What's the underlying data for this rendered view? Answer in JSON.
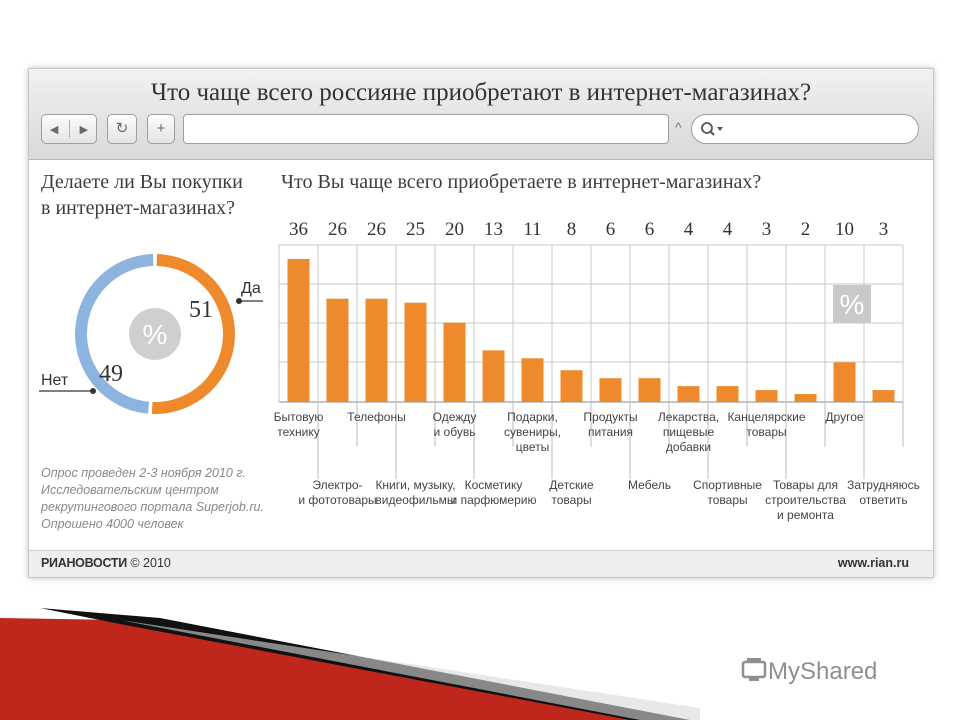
{
  "window": {
    "title": "Что чаще всего россияне приобретают в интернет-магазинах?",
    "url_value": "",
    "search_placeholder": "",
    "buttons": {
      "back": "◀",
      "forward": "▶",
      "reload": "↻",
      "new_tab": "+"
    }
  },
  "left_panel": {
    "question_line1": "Делаете ли Вы покупки",
    "question_line2": "в интернет-магазинах?",
    "center_symbol": "%",
    "note_lines": [
      "Опрос проведен 2-3 ноября 2010 г.",
      "Исследовательским центром",
      "рекрутингового портала Superjob.ru.",
      "Опрошено 4000 человек"
    ]
  },
  "right_panel": {
    "question": "Что Вы чаще всего приобретаете в интернет-магазинах?",
    "percent_badge": "%"
  },
  "footer": {
    "agency": "РИАНОВОСТИ",
    "copyright": "© 2010",
    "site": "www.rian.ru"
  },
  "watermark": {
    "text": "MyShared"
  },
  "colors": {
    "accent": "#ee8a2b",
    "no_color": "#8db4df",
    "center_circle": "#cfcfcf",
    "grid": "#c9c9c9"
  },
  "chart_data": [
    {
      "type": "pie",
      "title": "Делаете ли Вы покупки в интернет-магазинах?",
      "slices": [
        {
          "label": "Да",
          "value": 51,
          "color": "#ee8a2b"
        },
        {
          "label": "Нет",
          "value": 49,
          "color": "#8db4df"
        }
      ]
    },
    {
      "type": "bar",
      "title": "Что Вы чаще всего приобретаете в интернет-магазинах?",
      "grid": true,
      "values": [
        36,
        26,
        26,
        25,
        20,
        13,
        11,
        8,
        6,
        6,
        4,
        4,
        3,
        2,
        10,
        3
      ],
      "categories": [
        [
          "Бытовую",
          "технику"
        ],
        [
          "Электро-",
          "и фототовары"
        ],
        [
          "Телефоны"
        ],
        [
          "Книги, музыку,",
          "видеофильмы"
        ],
        [
          "Одежду",
          "и обувь"
        ],
        [
          "Косметику",
          "и парфюмерию"
        ],
        [
          "Подарки,",
          "сувениры,",
          "цветы"
        ],
        [
          "Детские",
          "товары"
        ],
        [
          "Продукты",
          "питания"
        ],
        [
          "Мебель"
        ],
        [
          "Лекарства,",
          "пищевые",
          "добавки"
        ],
        [
          "Спортивные",
          "товары"
        ],
        [
          "Канцелярские",
          "товары"
        ],
        [
          "Товары для",
          "строительства",
          "и ремонта"
        ],
        [
          "Другое"
        ],
        [
          "Затрудняюсь",
          "ответить"
        ]
      ]
    }
  ]
}
